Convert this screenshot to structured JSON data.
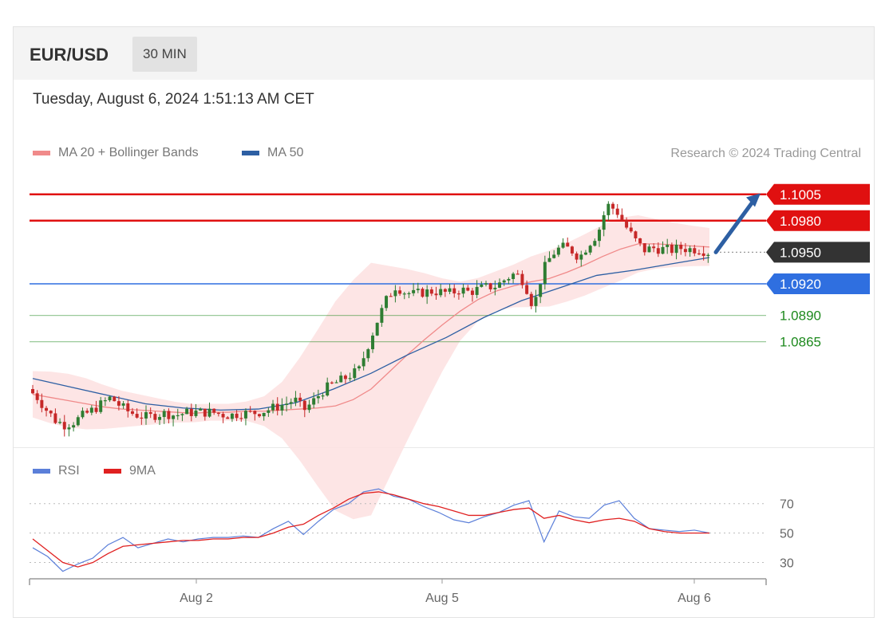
{
  "header": {
    "pair": "EUR/USD",
    "timeframe": "30 MIN"
  },
  "datetime": "Tuesday, August 6, 2024 1:51:13 AM CET",
  "legend_main": [
    {
      "label": "MA 20 + Bollinger Bands",
      "color": "#f08a8a"
    },
    {
      "label": "MA 50",
      "color": "#2d5fa3"
    }
  ],
  "credit": "Research © 2024 Trading Central",
  "legend_rsi": [
    {
      "label": "RSI",
      "color": "#5b7fd9"
    },
    {
      "label": "9MA",
      "color": "#e02020"
    }
  ],
  "colors": {
    "resistance": "#e01010",
    "current": "#333333",
    "pivot": "#2f6fe0",
    "support": "#1e8a1e",
    "up_candle": "#2e7d32",
    "down_candle": "#c62828",
    "band": "#fde0e0",
    "arrow": "#2d5fa3"
  },
  "chart_data": [
    {
      "type": "candlestick",
      "title": "",
      "x_ticks": [
        "Aug 2",
        "Aug 5",
        "Aug 6"
      ],
      "ylim": [
        1.077,
        1.102
      ],
      "levels": [
        {
          "label": "1.1005",
          "value": 1.1005,
          "kind": "resistance"
        },
        {
          "label": "1.0980",
          "value": 1.098,
          "kind": "resistance"
        },
        {
          "label": "1.0950",
          "value": 1.095,
          "kind": "current"
        },
        {
          "label": "1.0920",
          "value": 1.092,
          "kind": "pivot"
        },
        {
          "label": "1.0890",
          "value": 1.089,
          "kind": "support"
        },
        {
          "label": "1.0865",
          "value": 1.0865,
          "kind": "support"
        }
      ],
      "price_path": [
        1.082,
        1.0812,
        1.08,
        1.079,
        1.0786,
        1.0789,
        1.0795,
        1.08,
        1.0806,
        1.0812,
        1.0804,
        1.0798,
        1.0795,
        1.0793,
        1.0796,
        1.0797,
        1.0795,
        1.0797,
        1.0798,
        1.0798,
        1.0798,
        1.0796,
        1.0795,
        1.0797,
        1.0797,
        1.0798,
        1.08,
        1.0803,
        1.0806,
        1.081,
        1.08,
        1.0808,
        1.0818,
        1.0824,
        1.0828,
        1.0833,
        1.0838,
        1.0862,
        1.0885,
        1.0905,
        1.0918,
        1.0912,
        1.091,
        1.0912,
        1.0913,
        1.0912,
        1.0911,
        1.0915,
        1.0912,
        1.0915,
        1.0917,
        1.0918,
        1.0925,
        1.093,
        1.0922,
        1.0897,
        1.0932,
        1.0948,
        1.0955,
        1.0953,
        1.0945,
        1.0958,
        1.0968,
        1.0995,
        1.099,
        1.0975,
        1.0962,
        1.0952,
        1.0954,
        1.0953,
        1.0952,
        1.0954,
        1.0953,
        1.0953,
        1.095
      ],
      "ma20": [
        1.0815,
        1.0812,
        1.0809,
        1.0806,
        1.0803,
        1.0801,
        1.08,
        1.0799,
        1.0798,
        1.0797,
        1.0798,
        1.0798,
        1.0799,
        1.0799,
        1.08,
        1.0801,
        1.0802,
        1.0804,
        1.081,
        1.082,
        1.0836,
        1.0852,
        1.0867,
        1.0881,
        1.0894,
        1.0905,
        1.0913,
        1.0918,
        1.0922,
        1.0925,
        1.0931,
        1.0938,
        1.0946,
        1.0953,
        1.0958,
        1.0958,
        1.0957,
        1.0956,
        1.0955
      ],
      "ma50": [
        1.083,
        1.0822,
        1.0814,
        1.0806,
        1.0802,
        1.08,
        1.0801,
        1.0807,
        1.082,
        1.0835,
        1.0853,
        1.0869,
        1.0888,
        1.0904,
        1.0916,
        1.0928,
        1.0933,
        1.0939,
        1.0945
      ],
      "bollinger_width": [
        0.0022,
        0.0026,
        0.0024,
        0.0018,
        0.0014,
        0.001,
        0.0008,
        0.0008,
        0.001,
        0.003,
        0.007,
        0.011,
        0.012,
        0.009,
        0.006,
        0.003,
        0.0018,
        0.002,
        0.0026,
        0.0028,
        0.003,
        0.003,
        0.0024,
        0.002,
        0.0018
      ],
      "annotation": "projected move up toward 1.1005"
    },
    {
      "type": "line",
      "title": "",
      "ylim": [
        20,
        85
      ],
      "y_ticks": [
        "70",
        "50",
        "30"
      ],
      "series": [
        {
          "name": "RSI",
          "values": [
            40,
            34,
            24,
            29,
            33,
            42,
            47,
            40,
            43,
            46,
            44,
            46,
            47,
            47,
            48,
            47,
            53,
            58,
            49,
            58,
            66,
            70,
            78,
            80,
            75,
            73,
            68,
            64,
            59,
            57,
            61,
            64,
            69,
            72,
            44,
            65,
            61,
            60,
            69,
            72,
            60,
            53,
            52,
            51,
            52,
            50
          ]
        },
        {
          "name": "9MA",
          "values": [
            46,
            38,
            30,
            27,
            30,
            36,
            41,
            42,
            43,
            44,
            45,
            45,
            46,
            46,
            47,
            47,
            50,
            54,
            56,
            62,
            67,
            73,
            77,
            78,
            76,
            73,
            70,
            68,
            65,
            62,
            62,
            64,
            66,
            67,
            60,
            62,
            59,
            57,
            59,
            60,
            58,
            53,
            51,
            50,
            50,
            50
          ]
        }
      ]
    }
  ]
}
